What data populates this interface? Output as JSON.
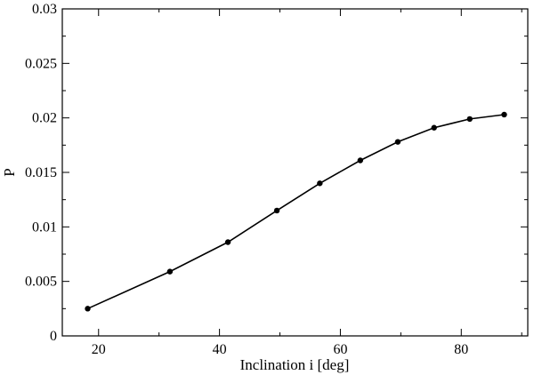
{
  "chart_data": {
    "type": "line",
    "title": "",
    "xlabel": "Inclination i [deg]",
    "ylabel": "P",
    "xlim": [
      14,
      91
    ],
    "ylim": [
      0,
      0.03
    ],
    "x_ticks": [
      20,
      40,
      60,
      80
    ],
    "x_tick_labels": [
      "20",
      "40",
      "60",
      "80"
    ],
    "y_ticks": [
      0,
      0.005,
      0.01,
      0.015,
      0.02,
      0.025,
      0.03
    ],
    "y_tick_labels": [
      "0",
      "0.005",
      "0.01",
      "0.015",
      "0.02",
      "0.025",
      "0.03"
    ],
    "grid": false,
    "legend": "none",
    "series": [
      {
        "color": "#000000",
        "marker": "circle",
        "points": [
          {
            "x": 18.2,
            "y": 0.0025
          },
          {
            "x": 31.8,
            "y": 0.0059
          },
          {
            "x": 41.4,
            "y": 0.0086
          },
          {
            "x": 49.5,
            "y": 0.0115
          },
          {
            "x": 56.6,
            "y": 0.014
          },
          {
            "x": 63.3,
            "y": 0.0161
          },
          {
            "x": 69.5,
            "y": 0.0178
          },
          {
            "x": 75.5,
            "y": 0.0191
          },
          {
            "x": 81.4,
            "y": 0.0199
          },
          {
            "x": 87.1,
            "y": 0.0203
          }
        ]
      }
    ]
  }
}
